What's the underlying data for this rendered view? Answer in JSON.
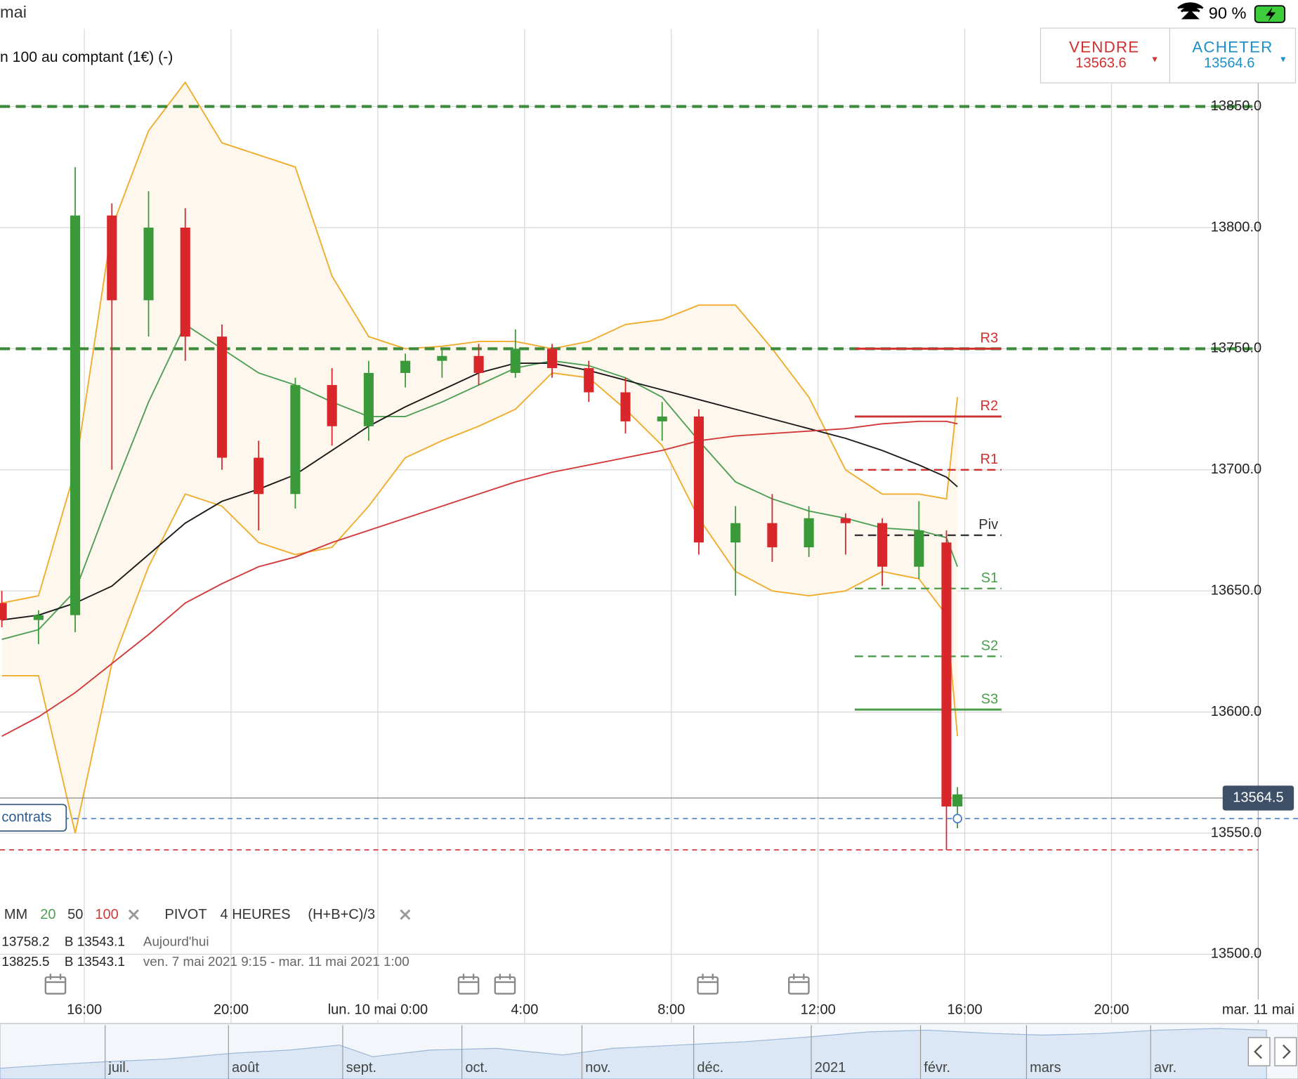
{
  "status_bar": {
    "time": "mai",
    "battery": "90 %"
  },
  "instrument": "n 100 au comptant (1€) (-)",
  "trade": {
    "sell_label": "VENDRE",
    "sell_price": "13563.6",
    "buy_label": "ACHETER",
    "buy_price": "13564.6"
  },
  "chart_data": {
    "type": "candlestick",
    "x": [
      -10.25,
      -9.25,
      -8.25,
      -7.25,
      -6.25,
      -5.25,
      -4.25,
      -3.25,
      -2.25,
      -1.25,
      -0.25,
      0.75,
      1.75,
      2.75,
      3.75,
      4.75,
      5.75,
      6.75,
      7.75,
      8.75,
      9.75,
      10.75,
      11.75,
      12.75,
      13.75,
      14.75,
      15.5,
      15.8
    ],
    "open": [
      13645,
      13638,
      13640,
      13805,
      13770,
      13800,
      13755,
      13705,
      13690,
      13735,
      13718,
      13740,
      13745,
      13747,
      13740,
      13750,
      13742,
      13732,
      13720,
      13722,
      13670,
      13678,
      13668,
      13680,
      13678,
      13660,
      13670,
      13561
    ],
    "high": [
      13650,
      13642,
      13825,
      13810,
      13815,
      13808,
      13760,
      13712,
      13738,
      13742,
      13745,
      13748,
      13750,
      13752,
      13758,
      13752,
      13745,
      13738,
      13728,
      13725,
      13685,
      13690,
      13685,
      13682,
      13680,
      13687,
      13675,
      13569
    ],
    "low": [
      13635,
      13628,
      13633,
      13700,
      13755,
      13745,
      13700,
      13675,
      13684,
      13710,
      13712,
      13734,
      13738,
      13735,
      13738,
      13738,
      13728,
      13715,
      13712,
      13665,
      13648,
      13662,
      13664,
      13665,
      13652,
      13655,
      13543,
      13552
    ],
    "close": [
      13638,
      13640,
      13805,
      13770,
      13800,
      13755,
      13705,
      13690,
      13735,
      13718,
      13740,
      13745,
      13747,
      13740,
      13750,
      13742,
      13732,
      13720,
      13722,
      13670,
      13678,
      13668,
      13680,
      13678,
      13660,
      13675,
      13561,
      13566
    ],
    "up_color": "#3a9a3a",
    "down_color": "#d8262b",
    "series": [
      {
        "name": "20",
        "color": "#4f9f55",
        "values": [
          13630,
          13634,
          13650,
          13690,
          13728,
          13760,
          13750,
          13740,
          13735,
          13728,
          13722,
          13722,
          13728,
          13735,
          13742,
          13745,
          13743,
          13738,
          13730,
          13712,
          13695,
          13688,
          13683,
          13680,
          13676,
          13675,
          13672,
          13660
        ]
      },
      {
        "name": "50",
        "color": "#1a1a1a",
        "values": [
          13638,
          13640,
          13645,
          13652,
          13665,
          13678,
          13687,
          13692,
          13698,
          13708,
          13718,
          13726,
          13733,
          13740,
          13744,
          13744,
          13741,
          13737,
          13733,
          13729,
          13725,
          13721,
          13717,
          13713,
          13708,
          13702,
          13697,
          13693
        ]
      },
      {
        "name": "100",
        "color": "#d23a3a",
        "values": [
          13590,
          13598,
          13608,
          13620,
          13632,
          13645,
          13653,
          13660,
          13664,
          13670,
          13675,
          13680,
          13685,
          13690,
          13695,
          13699,
          13702,
          13705,
          13708,
          13712,
          13714,
          13715,
          13716,
          13717,
          13719,
          13720,
          13720,
          13719
        ]
      }
    ],
    "bands": {
      "color": "#f0ac2c",
      "fill": "#fdf7ee",
      "upper": [
        13645,
        13648,
        13700,
        13800,
        13840,
        13860,
        13835,
        13830,
        13825,
        13780,
        13755,
        13750,
        13751,
        13753,
        13753,
        13750,
        13753,
        13760,
        13762,
        13768,
        13768,
        13750,
        13730,
        13700,
        13690,
        13690,
        13688,
        13730
      ],
      "lower": [
        13615,
        13615,
        13550,
        13620,
        13660,
        13690,
        13685,
        13670,
        13665,
        13668,
        13685,
        13705,
        13712,
        13718,
        13725,
        13740,
        13738,
        13725,
        13710,
        13680,
        13658,
        13650,
        13648,
        13650,
        13658,
        13655,
        13640,
        13590
      ]
    },
    "pivot_span": [
      13,
      17
    ],
    "pivots": [
      {
        "name": "R3",
        "value": 13750,
        "color": "#d03030",
        "style": "solid"
      },
      {
        "name": "R2",
        "value": 13722,
        "color": "#d03030",
        "style": "solid"
      },
      {
        "name": "R1",
        "value": 13700,
        "color": "#d03030",
        "style": "dashed"
      },
      {
        "name": "Piv",
        "value": 13673,
        "color": "#333333",
        "style": "dashed"
      },
      {
        "name": "S1",
        "value": 13651,
        "color": "#4a9e4a",
        "style": "dashed"
      },
      {
        "name": "S2",
        "value": 13623,
        "color": "#4a9e4a",
        "style": "dashed"
      },
      {
        "name": "S3",
        "value": 13601,
        "color": "#4a9e4a",
        "style": "solid"
      }
    ],
    "alert_levels": [
      13850,
      13750
    ],
    "alert_color": "#3d8a3d",
    "last_price": 13564.5,
    "position_level": 13556,
    "position_label": "contrats",
    "low_level": 13543.1,
    "xlim": [
      -10.3,
      24
    ],
    "xticks": [
      {
        "value": -8,
        "label": "16:00"
      },
      {
        "value": -4,
        "label": "20:00"
      },
      {
        "value": 0,
        "label": "lun. 10 mai 0:00"
      },
      {
        "value": 4,
        "label": "4:00"
      },
      {
        "value": 8,
        "label": "8:00"
      },
      {
        "value": 12,
        "label": "12:00"
      },
      {
        "value": 16,
        "label": "16:00"
      },
      {
        "value": 20,
        "label": "20:00"
      },
      {
        "value": 24,
        "label": "mar. 11 mai"
      }
    ],
    "ylim": [
      13482,
      13882
    ],
    "yticks": [
      {
        "value": 13500,
        "label": "13500.0"
      },
      {
        "value": 13550,
        "label": "13550.0"
      },
      {
        "value": 13600,
        "label": "13600.0"
      },
      {
        "value": 13650,
        "label": "13650.0"
      },
      {
        "value": 13700,
        "label": "13700.0"
      },
      {
        "value": 13750,
        "label": "13750.0"
      },
      {
        "value": 13800,
        "label": "13800.0"
      },
      {
        "value": 13850,
        "label": "13850.0"
      }
    ],
    "grid": true
  },
  "legend": {
    "ma": "MM",
    "pivot": "PIVOT",
    "period": "4 HEURES",
    "formula": "(H+B+C)/3"
  },
  "info_rows": [
    [
      "13758.2",
      "B 13543.1",
      "Aujourd'hui"
    ],
    [
      "13825.5",
      "B 13543.1",
      "ven. 7 mai 2021 9:15 - mar. 11 mai 2021 1:00"
    ]
  ],
  "navigator": {
    "months": [
      "juil.",
      "août",
      "sept.",
      "oct.",
      "nov.",
      "déc.",
      "2021",
      "févr.",
      "mars",
      "avr."
    ]
  }
}
